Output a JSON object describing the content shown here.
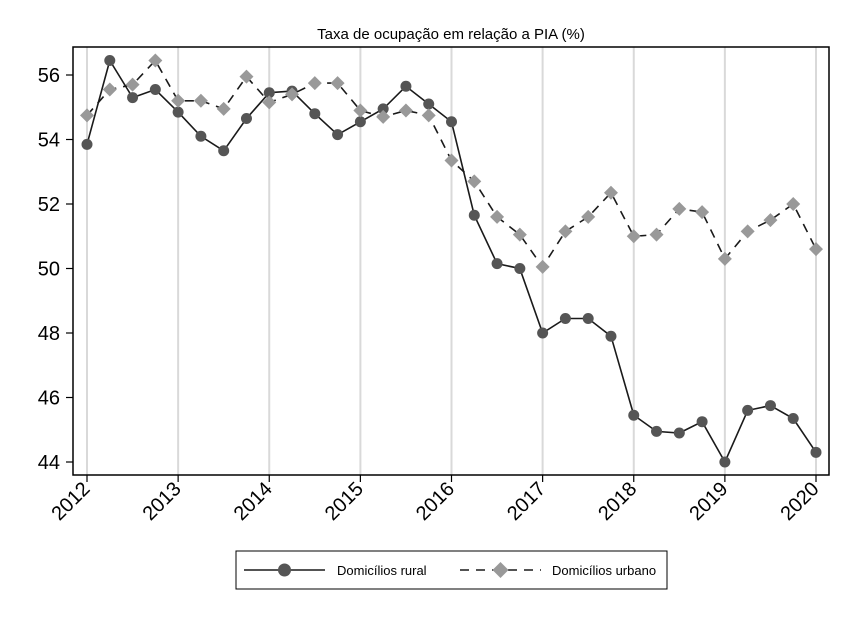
{
  "chart_data": {
    "type": "line",
    "title": "Taxa de ocupação em relação a PIA (%)",
    "xlabel": "",
    "ylabel": "",
    "xlim": [
      2012,
      2020
    ],
    "ylim": [
      43.6,
      56.9
    ],
    "xticks": [
      2012,
      2013,
      2014,
      2015,
      2016,
      2017,
      2018,
      2019,
      2020
    ],
    "xtick_labels": [
      "2012",
      "2013",
      "2014",
      "2015",
      "2016",
      "2017",
      "2018",
      "2019",
      "2020"
    ],
    "yticks": [
      44,
      46,
      48,
      50,
      52,
      54,
      56
    ],
    "ytick_labels": [
      "44",
      "46",
      "48",
      "50",
      "52",
      "54",
      "56"
    ],
    "grid": "vertical",
    "legend_position": "bottom",
    "x": [
      2012.0,
      2012.25,
      2012.5,
      2012.75,
      2013.0,
      2013.25,
      2013.5,
      2013.75,
      2014.0,
      2014.25,
      2014.5,
      2014.75,
      2015.0,
      2015.25,
      2015.5,
      2015.75,
      2016.0,
      2016.25,
      2016.5,
      2016.75,
      2017.0,
      2017.25,
      2017.5,
      2017.75,
      2018.0,
      2018.25,
      2018.5,
      2018.75,
      2019.0,
      2019.25,
      2019.5,
      2019.75,
      2020.0
    ],
    "series": [
      {
        "name": "Domicílios rural",
        "color": "#1a1a1a",
        "marker_color": "#555555",
        "marker": "circle",
        "line_style": "solid",
        "values": [
          53.85,
          56.45,
          55.3,
          55.55,
          54.85,
          54.1,
          53.65,
          54.65,
          55.45,
          55.5,
          54.8,
          54.15,
          54.55,
          54.95,
          55.65,
          55.1,
          54.55,
          51.65,
          50.15,
          50.0,
          48.0,
          48.45,
          48.45,
          47.9,
          45.45,
          44.95,
          44.9,
          45.25,
          44.0,
          45.6,
          45.75,
          45.35,
          44.3
        ]
      },
      {
        "name": "Domicílios urbano",
        "color": "#1a1a1a",
        "marker_color": "#999999",
        "marker": "diamond",
        "line_style": "dashed",
        "values": [
          54.75,
          55.55,
          55.7,
          56.45,
          55.2,
          55.2,
          54.95,
          55.95,
          55.15,
          55.4,
          55.75,
          55.75,
          54.9,
          54.7,
          54.9,
          54.75,
          53.35,
          52.7,
          51.6,
          51.05,
          50.05,
          51.15,
          51.6,
          52.35,
          51.0,
          51.05,
          51.85,
          51.75,
          50.3,
          51.15,
          51.5,
          52.0,
          50.6
        ]
      }
    ]
  }
}
